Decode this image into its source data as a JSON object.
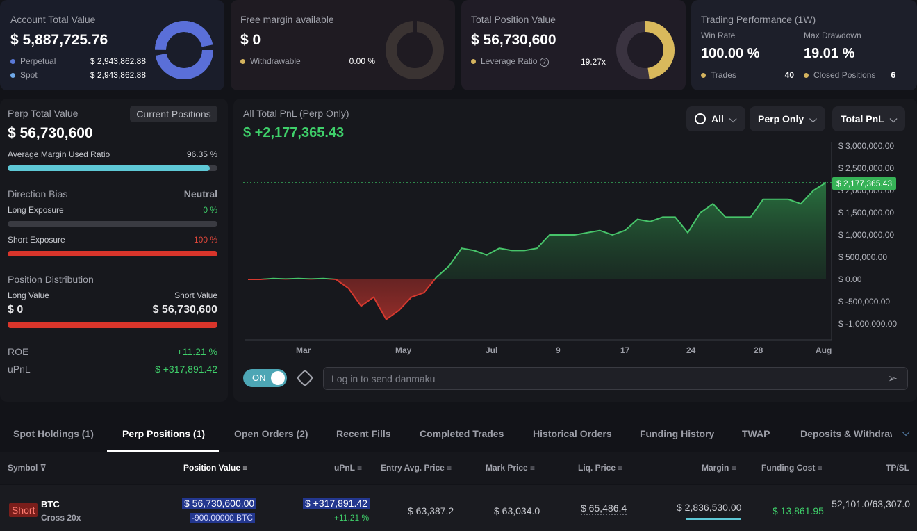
{
  "summary": {
    "account": {
      "label": "Account Total Value",
      "value": "$ 5,887,725.76",
      "items": [
        {
          "name": "Perpetual",
          "value": "$ 2,943,862.88"
        },
        {
          "name": "Spot",
          "value": "$ 2,943,862.88"
        }
      ]
    },
    "margin": {
      "label": "Free margin available",
      "value": "$ 0",
      "item_name": "Withdrawable",
      "item_value": "0.00 %"
    },
    "position": {
      "label": "Total Position Value",
      "value": "$ 56,730,600",
      "item_name": "Leverage Ratio",
      "item_value": "19.27x"
    },
    "performance": {
      "label": "Trading Performance (1W)",
      "win_rate_label": "Win Rate",
      "win_rate": "100.00 %",
      "drawdown_label": "Max Drawdown",
      "drawdown": "19.01 %",
      "trades_label": "Trades",
      "trades": "40",
      "closed_label": "Closed Positions",
      "closed": "6"
    }
  },
  "perp_panel": {
    "title": "Perp Total Value",
    "toggle": "Current Positions",
    "value": "$ 56,730,600",
    "margin_ratio_label": "Average Margin Used Ratio",
    "margin_ratio": "96.35 %",
    "margin_ratio_fraction": 0.9635,
    "bias_label": "Direction Bias",
    "bias": "Neutral",
    "long_label": "Long Exposure",
    "long": "0 %",
    "short_label": "Short Exposure",
    "short": "100 %",
    "dist_label": "Position Distribution",
    "long_value_label": "Long Value",
    "short_value_label": "Short Value",
    "long_value": "$ 0",
    "short_value": "$ 56,730,600",
    "roe_label": "ROE",
    "roe": "+11.21 %",
    "upnl_label": "uPnL",
    "upnl": "$ +317,891.42"
  },
  "chart_panel": {
    "title": "All Total PnL (Perp Only)",
    "value": "$ +2,177,365.43",
    "filters": [
      "All",
      "Perp Only",
      "Total PnL"
    ],
    "danmaku_toggle": "ON",
    "danmaku_placeholder": "Log in to send danmaku",
    "current_label": "$ 2,177,365.43"
  },
  "chart_data": {
    "type": "area",
    "x_ticks": [
      "Mar",
      "May",
      "Jul",
      "9",
      "17",
      "24",
      "28",
      "Aug"
    ],
    "y_ticks": [
      "$ 3,000,000.00",
      "$ 2,500,000.00",
      "$ 2,000,000.00",
      "$ 1,500,000.00",
      "$ 1,000,000.00",
      "$ 500,000.00",
      "$ 0.00",
      "$ -500,000.00",
      "$ -1,000,000.00"
    ],
    "ylim": [
      -1000000,
      3000000
    ],
    "values": [
      0,
      0,
      20000,
      10000,
      20000,
      10000,
      20000,
      0,
      -200000,
      -600000,
      -400000,
      -900000,
      -700000,
      -400000,
      -300000,
      50000,
      300000,
      700000,
      650000,
      550000,
      700000,
      650000,
      650000,
      700000,
      1000000,
      1000000,
      1000000,
      1050000,
      1100000,
      1000000,
      1100000,
      1350000,
      1300000,
      1400000,
      1400000,
      1050000,
      1500000,
      1700000,
      1400000,
      1400000,
      1400000,
      1800000,
      1800000,
      1800000,
      1700000,
      2000000,
      2177365
    ],
    "grid": false
  },
  "tabs": [
    "Spot Holdings (1)",
    "Perp Positions (1)",
    "Open Orders (2)",
    "Recent Fills",
    "Completed Trades",
    "Historical Orders",
    "Funding History",
    "TWAP",
    "Deposits & Withdraw"
  ],
  "table": {
    "headers": [
      "Symbol",
      "Position Value",
      "uPnL",
      "Entry Avg. Price",
      "Mark Price",
      "Liq. Price",
      "Margin",
      "Funding Cost",
      "TP/SL"
    ],
    "row": {
      "side": "Short",
      "symbol": "BTC",
      "mode": "Cross 20x",
      "value": "$ 56,730,600.00",
      "size": "-900.00000 BTC",
      "upnl": "$ +317,891.42",
      "upnl_pct": "+11.21 %",
      "entry": "$ 63,387.2",
      "mark": "$ 63,034.0",
      "liq": "$ 65,486.4",
      "margin": "$ 2,836,530.00",
      "funding": "$ 13,861.95",
      "tpsl": "52,101.0/63,307.0"
    }
  },
  "colors": {
    "accent": "#5a79d8",
    "green": "#3fcf6a",
    "red": "#e0473b",
    "gold": "#d4b35e",
    "cyan": "#5ec8d6"
  }
}
